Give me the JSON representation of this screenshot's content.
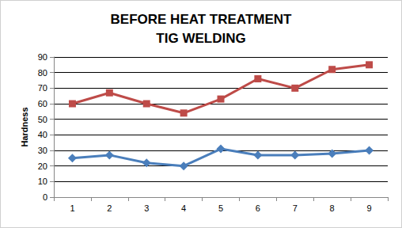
{
  "chart_data": {
    "type": "line",
    "title": "BEFORE HEAT TREATMENT\nTIG WELDING",
    "y_label": "Hardness",
    "categories": [
      "1",
      "2",
      "3",
      "4",
      "5",
      "6",
      "7",
      "8",
      "9"
    ],
    "series": [
      {
        "color": "#be4b48",
        "marker": "square",
        "values": [
          60,
          67,
          60,
          54,
          63,
          76,
          70,
          82,
          85
        ]
      },
      {
        "color": "#4a7ebb",
        "marker": "diamond",
        "values": [
          25,
          27,
          22,
          20,
          31,
          27,
          27,
          28,
          30
        ]
      }
    ],
    "ylim": [
      0,
      90
    ],
    "yticks": [
      0,
      10,
      20,
      30,
      40,
      50,
      60,
      70,
      80,
      90
    ],
    "grid": true
  }
}
